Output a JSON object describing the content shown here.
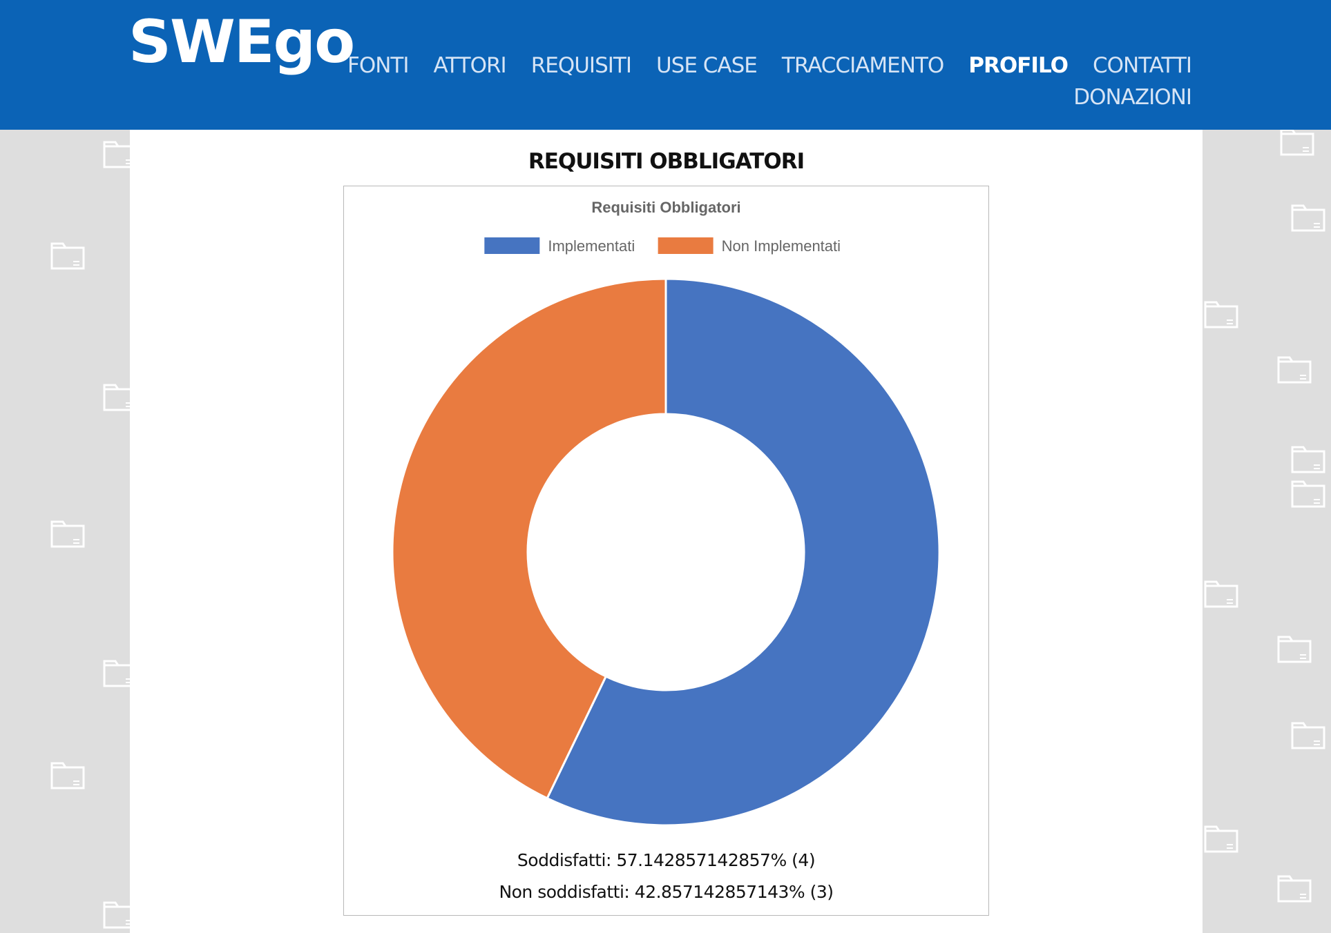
{
  "header": {
    "logo": "SWEgo",
    "nav": [
      {
        "label": "FONTI",
        "active": false
      },
      {
        "label": "ATTORI",
        "active": false
      },
      {
        "label": "REQUISITI",
        "active": false
      },
      {
        "label": "USE CASE",
        "active": false
      },
      {
        "label": "TRACCIAMENTO",
        "active": false
      },
      {
        "label": "PROFILO",
        "active": true
      },
      {
        "label": "CONTATTI",
        "active": false
      },
      {
        "label": "DONAZIONI",
        "active": false
      }
    ]
  },
  "page_title": "REQUISITI OBBLIGATORI",
  "stats": {
    "satisfied": "Soddisfatti: 57.142857142857% (4)",
    "unsatisfied": "Non soddisfatti: 42.857142857143% (3)"
  },
  "colors": {
    "header_bg": "#0b63b6",
    "implemented": "#4674c1",
    "not_implemented": "#e97b40"
  },
  "chart_data": {
    "type": "pie",
    "subtype": "doughnut",
    "title": "Requisiti Obbligatori",
    "legend_position": "top",
    "categories": [
      "Implementati",
      "Non Implementati"
    ],
    "values": [
      4,
      3
    ],
    "colors": [
      "#4674c1",
      "#e97b40"
    ]
  }
}
